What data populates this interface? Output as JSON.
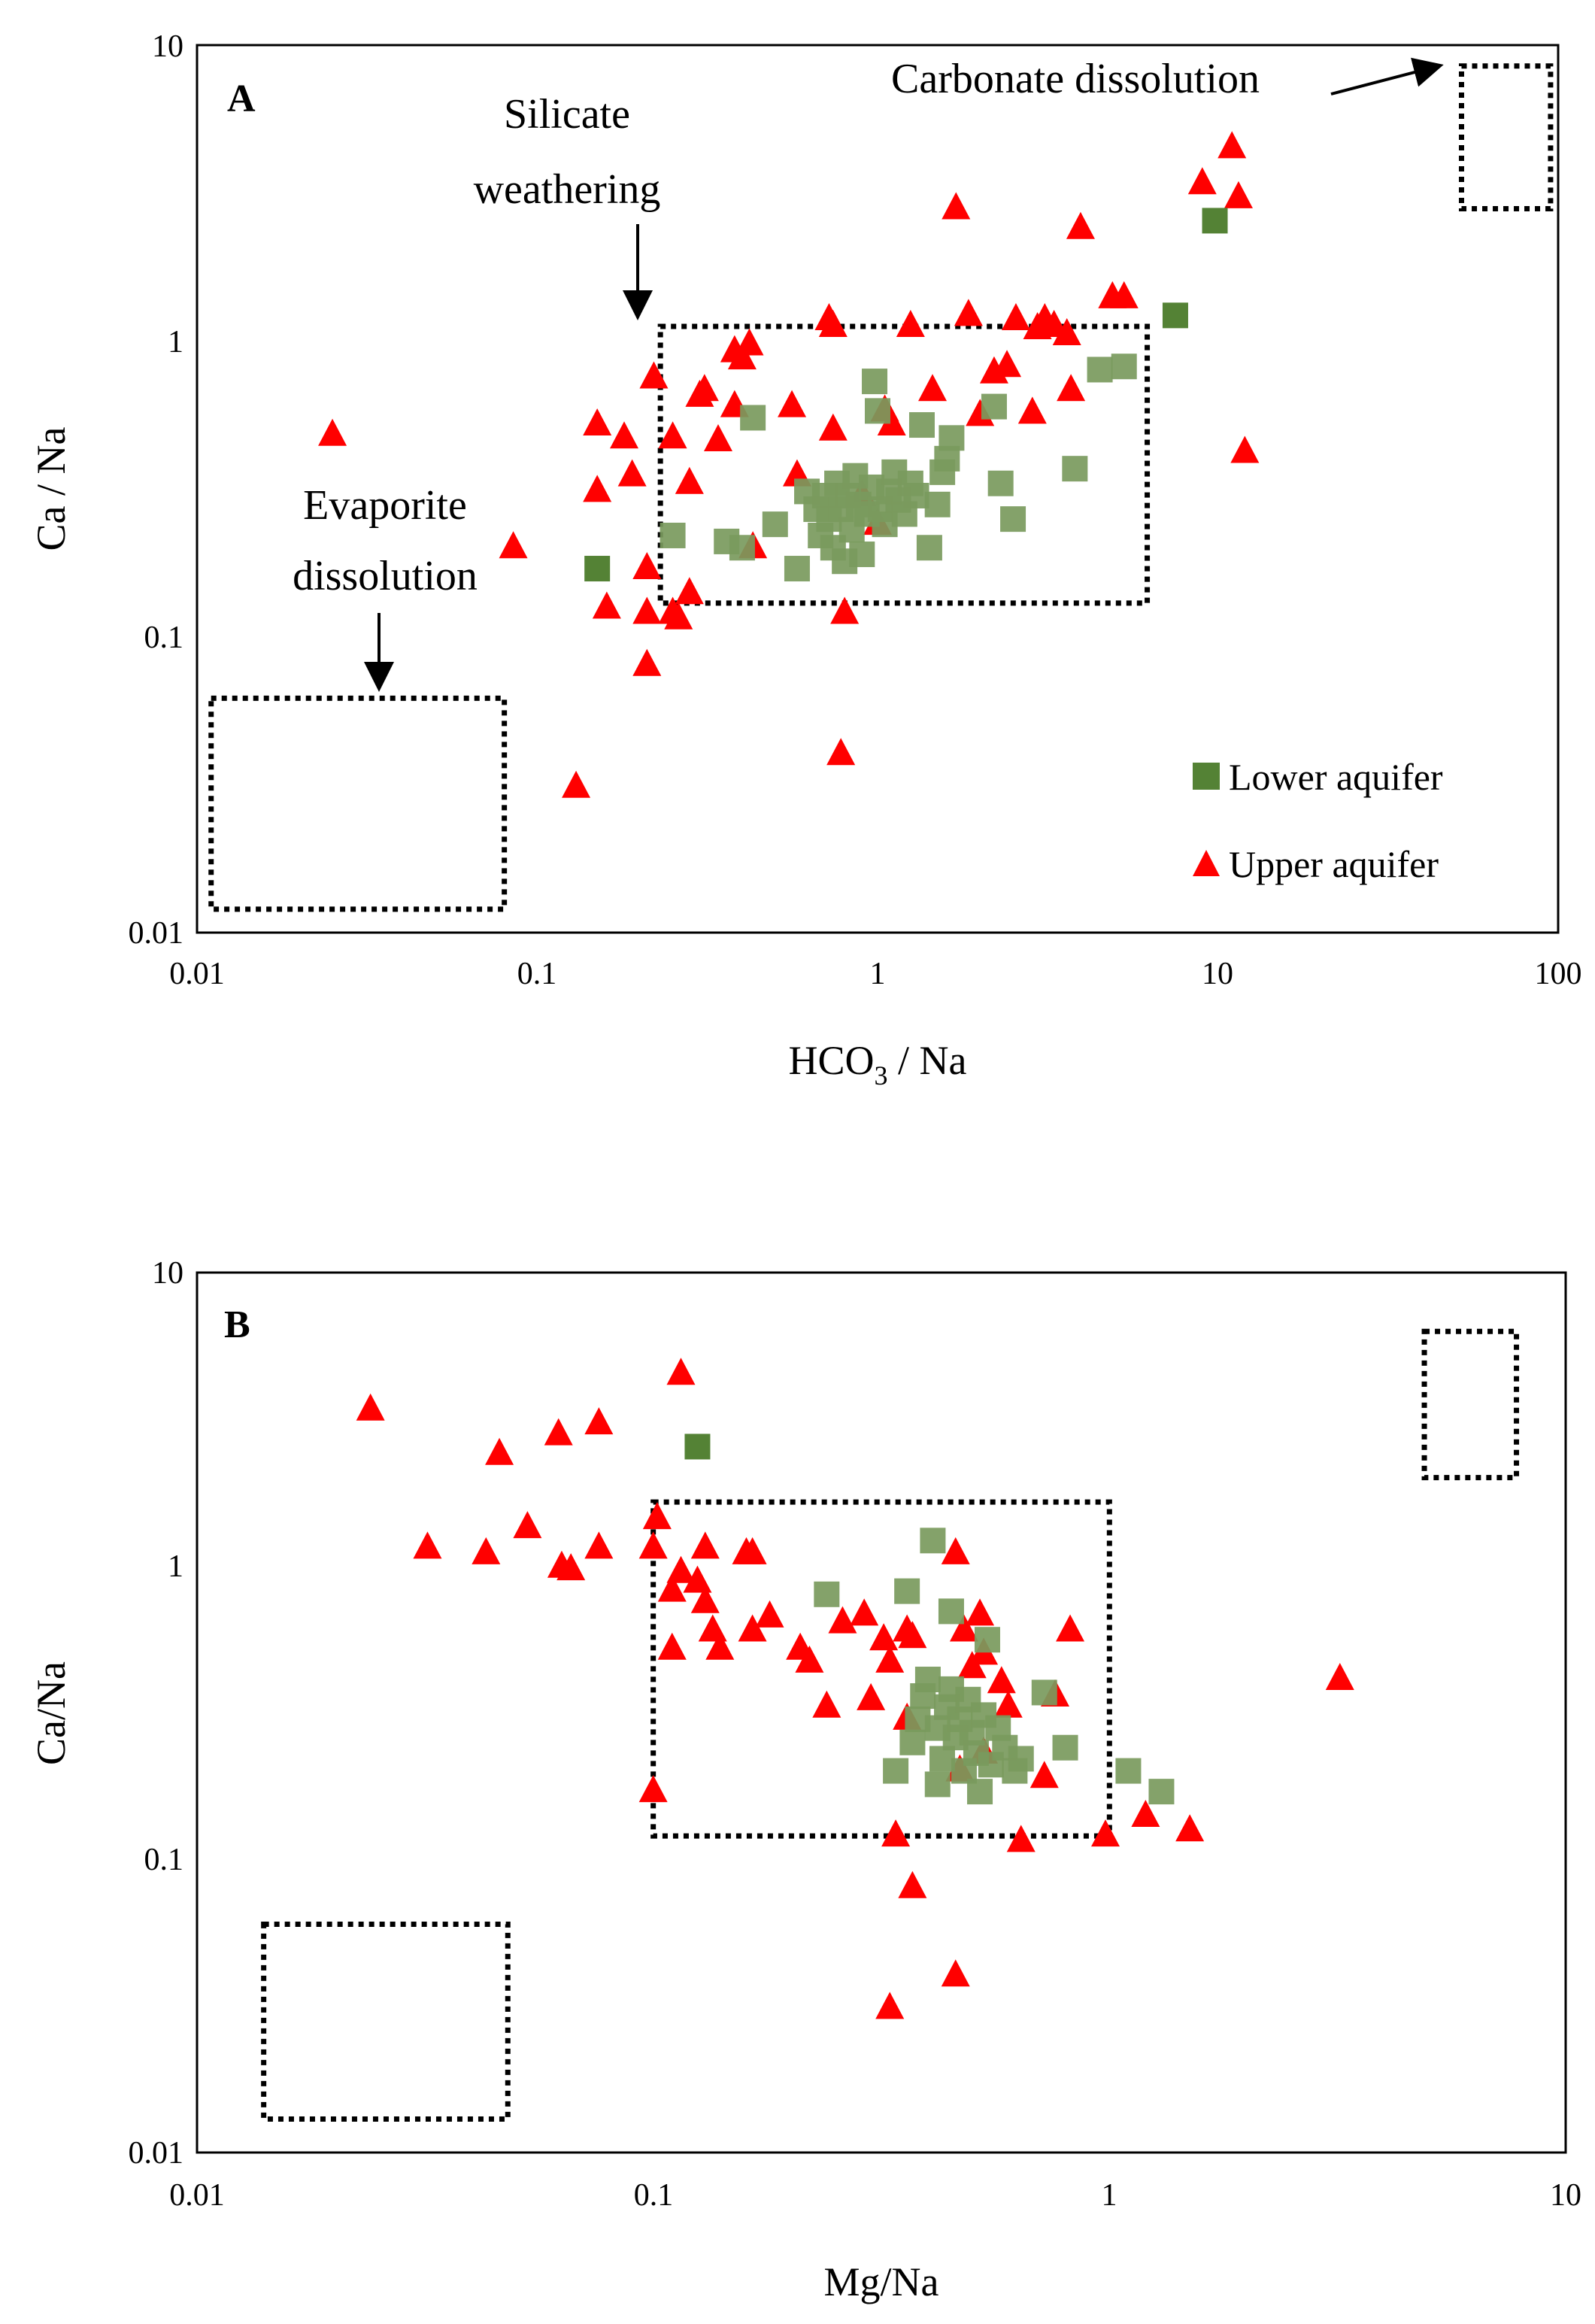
{
  "colors": {
    "lower": "#548235",
    "lower_light": "#7a9a5d",
    "upper": "#ff0000"
  },
  "chart_data": [
    {
      "type": "scatter",
      "panel": "A",
      "xscale": "log",
      "yscale": "log",
      "xlim": [
        0.01,
        100
      ],
      "ylim": [
        0.01,
        10
      ],
      "xlabel_main": "HCO",
      "xlabel_sub": "3",
      "xlabel_tail": " / Na",
      "ylabel": "Ca / Na",
      "xticks": [
        "0.01",
        "0.1",
        "1",
        "10",
        "100"
      ],
      "yticks": [
        "0.01",
        "0.1",
        "1",
        "10"
      ],
      "legend": {
        "lower": "Lower aquifer",
        "upper": "Upper aquifer",
        "position": "bottom-right"
      },
      "annotations": {
        "carbonate": "Carbonate dissolution",
        "silicate_1": "Silicate",
        "silicate_2": "weathering",
        "evaporite_1": "Evaporite",
        "evaporite_2": "dissolution"
      },
      "regions": [
        {
          "name": "evaporite",
          "x": [
            0.011,
            0.08
          ],
          "y": [
            0.012,
            0.062
          ]
        },
        {
          "name": "silicate",
          "x": [
            0.23,
            6.2
          ],
          "y": [
            0.13,
            1.12
          ]
        },
        {
          "name": "carbonate",
          "x": [
            52,
            95
          ],
          "y": [
            2.8,
            8.5
          ]
        }
      ],
      "series": [
        {
          "name": "Lower aquifer",
          "points": [
            [
              0.15,
              0.17
            ],
            [
              0.25,
              0.22
            ],
            [
              0.36,
              0.21
            ],
            [
              0.4,
              0.2
            ],
            [
              0.43,
              0.55
            ],
            [
              0.5,
              0.24
            ],
            [
              0.58,
              0.17
            ],
            [
              0.62,
              0.31
            ],
            [
              0.66,
              0.27
            ],
            [
              0.68,
              0.22
            ],
            [
              0.7,
              0.3
            ],
            [
              0.72,
              0.25
            ],
            [
              0.74,
              0.2
            ],
            [
              0.76,
              0.33
            ],
            [
              0.78,
              0.27
            ],
            [
              0.8,
              0.18
            ],
            [
              0.82,
              0.3
            ],
            [
              0.84,
              0.23
            ],
            [
              0.86,
              0.35
            ],
            [
              0.88,
              0.28
            ],
            [
              0.9,
              0.19
            ],
            [
              0.93,
              0.26
            ],
            [
              0.96,
              0.32
            ],
            [
              0.98,
              0.73
            ],
            [
              1.0,
              0.58
            ],
            [
              1.02,
              0.27
            ],
            [
              1.05,
              0.24
            ],
            [
              1.08,
              0.31
            ],
            [
              1.12,
              0.36
            ],
            [
              1.15,
              0.29
            ],
            [
              1.2,
              0.26
            ],
            [
              1.25,
              0.33
            ],
            [
              1.3,
              0.3
            ],
            [
              1.35,
              0.52
            ],
            [
              1.42,
              0.2
            ],
            [
              1.5,
              0.28
            ],
            [
              1.55,
              0.36
            ],
            [
              1.6,
              0.4
            ],
            [
              1.65,
              0.47
            ],
            [
              2.2,
              0.6
            ],
            [
              2.3,
              0.33
            ],
            [
              2.5,
              0.25
            ],
            [
              3.8,
              0.37
            ],
            [
              4.5,
              0.8
            ],
            [
              5.3,
              0.82
            ],
            [
              7.5,
              1.22
            ],
            [
              9.8,
              2.55
            ]
          ]
        },
        {
          "name": "Upper aquifer",
          "points": [
            [
              0.025,
              0.48
            ],
            [
              0.085,
              0.2
            ],
            [
              0.13,
              0.031
            ],
            [
              0.15,
              0.52
            ],
            [
              0.15,
              0.31
            ],
            [
              0.16,
              0.125
            ],
            [
              0.18,
              0.47
            ],
            [
              0.19,
              0.35
            ],
            [
              0.21,
              0.17
            ],
            [
              0.21,
              0.12
            ],
            [
              0.21,
              0.08
            ],
            [
              0.22,
              0.75
            ],
            [
              0.25,
              0.47
            ],
            [
              0.25,
              0.12
            ],
            [
              0.26,
              0.115
            ],
            [
              0.28,
              0.33
            ],
            [
              0.28,
              0.14
            ],
            [
              0.3,
              0.65
            ],
            [
              0.31,
              0.68
            ],
            [
              0.34,
              0.46
            ],
            [
              0.38,
              0.92
            ],
            [
              0.38,
              0.6
            ],
            [
              0.42,
              0.97
            ],
            [
              0.4,
              0.87
            ],
            [
              0.43,
              0.2
            ],
            [
              0.56,
              0.6
            ],
            [
              0.58,
              0.35
            ],
            [
              0.72,
              1.18
            ],
            [
              0.74,
              1.12
            ],
            [
              0.74,
              0.5
            ],
            [
              0.78,
              0.04
            ],
            [
              0.8,
              0.12
            ],
            [
              0.9,
              0.3
            ],
            [
              1.0,
              0.24
            ],
            [
              1.05,
              0.58
            ],
            [
              1.1,
              0.52
            ],
            [
              1.25,
              1.12
            ],
            [
              1.45,
              0.68
            ],
            [
              1.7,
              2.8
            ],
            [
              1.85,
              1.22
            ],
            [
              2.0,
              0.56
            ],
            [
              2.2,
              0.78
            ],
            [
              2.4,
              0.82
            ],
            [
              2.55,
              1.18
            ],
            [
              2.85,
              0.57
            ],
            [
              2.95,
              1.1
            ],
            [
              3.1,
              1.18
            ],
            [
              3.3,
              1.12
            ],
            [
              3.6,
              1.05
            ],
            [
              3.7,
              0.68
            ],
            [
              3.95,
              2.4
            ],
            [
              4.9,
              1.4
            ],
            [
              5.3,
              1.4
            ],
            [
              9.0,
              3.4
            ],
            [
              11.0,
              4.5
            ],
            [
              11.5,
              3.05
            ],
            [
              12.0,
              0.42
            ]
          ]
        }
      ]
    },
    {
      "type": "scatter",
      "panel": "B",
      "xscale": "log",
      "yscale": "log",
      "xlim": [
        0.01,
        10
      ],
      "ylim": [
        0.01,
        10
      ],
      "xlabel": "Mg/Na",
      "ylabel": "Ca/Na",
      "xticks": [
        "0.01",
        "0.1",
        "1",
        "10"
      ],
      "yticks": [
        "0.01",
        "0.1",
        "1",
        "10"
      ],
      "regions": [
        {
          "name": "evaporite",
          "x": [
            0.014,
            0.048
          ],
          "y": [
            0.013,
            0.06
          ]
        },
        {
          "name": "silicate",
          "x": [
            0.1,
            1.0
          ],
          "y": [
            0.12,
            1.65
          ]
        },
        {
          "name": "carbonate",
          "x": [
            4.9,
            7.8
          ],
          "y": [
            2.0,
            6.3
          ]
        }
      ],
      "series": [
        {
          "name": "Lower aquifer",
          "points": [
            [
              0.125,
              2.55
            ],
            [
              0.24,
              0.8
            ],
            [
              0.34,
              0.2
            ],
            [
              0.36,
              0.82
            ],
            [
              0.37,
              0.25
            ],
            [
              0.38,
              0.3
            ],
            [
              0.39,
              0.36
            ],
            [
              0.4,
              0.41
            ],
            [
              0.41,
              1.22
            ],
            [
              0.42,
              0.18
            ],
            [
              0.42,
              0.28
            ],
            [
              0.43,
              0.22
            ],
            [
              0.44,
              0.33
            ],
            [
              0.45,
              0.38
            ],
            [
              0.45,
              0.7
            ],
            [
              0.46,
              0.26
            ],
            [
              0.47,
              0.3
            ],
            [
              0.48,
              0.2
            ],
            [
              0.49,
              0.35
            ],
            [
              0.5,
              0.27
            ],
            [
              0.51,
              0.23
            ],
            [
              0.52,
              0.17
            ],
            [
              0.53,
              0.31
            ],
            [
              0.54,
              0.56
            ],
            [
              0.55,
              0.21
            ],
            [
              0.57,
              0.28
            ],
            [
              0.59,
              0.24
            ],
            [
              0.62,
              0.2
            ],
            [
              0.64,
              0.22
            ],
            [
              0.72,
              0.37
            ],
            [
              0.8,
              0.24
            ],
            [
              1.1,
              0.2
            ],
            [
              1.3,
              0.17
            ]
          ]
        },
        {
          "name": "Upper aquifer",
          "points": [
            [
              0.024,
              3.4
            ],
            [
              0.032,
              1.15
            ],
            [
              0.043,
              1.1
            ],
            [
              0.046,
              2.4
            ],
            [
              0.053,
              1.35
            ],
            [
              0.062,
              2.8
            ],
            [
              0.063,
              0.99
            ],
            [
              0.066,
              0.97
            ],
            [
              0.076,
              3.05
            ],
            [
              0.076,
              1.15
            ],
            [
              0.1,
              1.15
            ],
            [
              0.1,
              0.17
            ],
            [
              0.102,
              1.45
            ],
            [
              0.11,
              0.82
            ],
            [
              0.11,
              0.52
            ],
            [
              0.115,
              4.5
            ],
            [
              0.115,
              0.95
            ],
            [
              0.125,
              0.88
            ],
            [
              0.13,
              1.15
            ],
            [
              0.13,
              0.75
            ],
            [
              0.135,
              0.6
            ],
            [
              0.14,
              0.52
            ],
            [
              0.16,
              1.1
            ],
            [
              0.165,
              1.1
            ],
            [
              0.165,
              0.6
            ],
            [
              0.18,
              0.67
            ],
            [
              0.21,
              0.52
            ],
            [
              0.22,
              0.47
            ],
            [
              0.24,
              0.33
            ],
            [
              0.26,
              0.64
            ],
            [
              0.29,
              0.68
            ],
            [
              0.3,
              0.35
            ],
            [
              0.32,
              0.56
            ],
            [
              0.33,
              0.47
            ],
            [
              0.33,
              0.031
            ],
            [
              0.34,
              0.12
            ],
            [
              0.36,
              0.6
            ],
            [
              0.36,
              0.3
            ],
            [
              0.37,
              0.57
            ],
            [
              0.37,
              0.08
            ],
            [
              0.46,
              1.1
            ],
            [
              0.46,
              0.04
            ],
            [
              0.47,
              0.2
            ],
            [
              0.48,
              0.6
            ],
            [
              0.5,
              0.45
            ],
            [
              0.52,
              0.68
            ],
            [
              0.53,
              0.5
            ],
            [
              0.53,
              0.23
            ],
            [
              0.58,
              0.4
            ],
            [
              0.6,
              0.33
            ],
            [
              0.64,
              0.115
            ],
            [
              0.72,
              0.19
            ],
            [
              0.76,
              0.36
            ],
            [
              0.82,
              0.6
            ],
            [
              0.98,
              0.12
            ],
            [
              1.2,
              0.14
            ],
            [
              1.5,
              0.125
            ],
            [
              3.2,
              0.41
            ]
          ]
        }
      ]
    }
  ]
}
